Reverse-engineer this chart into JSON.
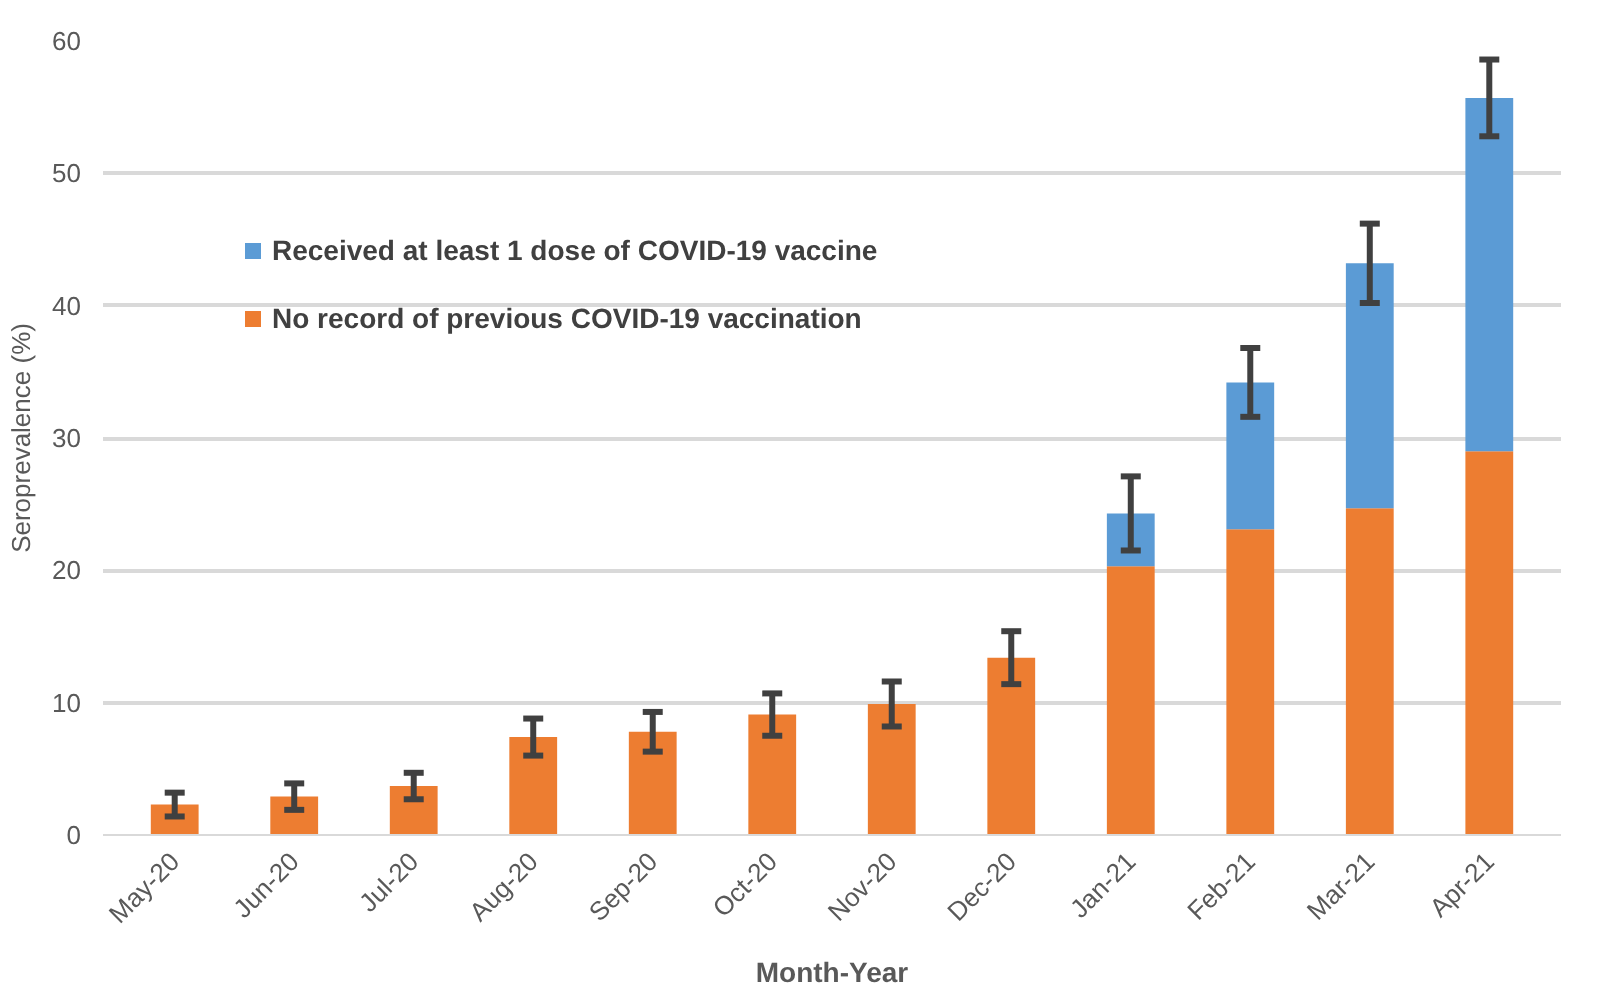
{
  "chart_data": {
    "type": "bar",
    "stacked": true,
    "xlabel": "Month-Year",
    "ylabel": "Seroprevalence (%)",
    "categories": [
      "May-20",
      "Jun-20",
      "Jul-20",
      "Aug-20",
      "Sep-20",
      "Oct-20",
      "Nov-20",
      "Dec-20",
      "Jan-21",
      "Feb-21",
      "Mar-21",
      "Apr-21"
    ],
    "series": [
      {
        "name": "No record of previous COVID-19 vaccination",
        "color": "#ed7d31",
        "values": [
          2.3,
          2.9,
          3.7,
          7.4,
          7.8,
          9.1,
          9.9,
          13.4,
          20.3,
          23.1,
          24.7,
          29.0
        ],
        "errors": [
          0.9,
          1.0,
          1.0,
          1.4,
          1.5,
          1.6,
          1.7,
          2.0,
          null,
          null,
          null,
          null
        ]
      },
      {
        "name": "Received at least 1 dose of COVID-19 vaccine",
        "color": "#5b9bd5",
        "values": [
          null,
          null,
          null,
          null,
          null,
          null,
          null,
          null,
          4.0,
          11.1,
          18.5,
          26.7
        ],
        "errors": [
          null,
          null,
          null,
          null,
          null,
          null,
          null,
          null,
          2.8,
          2.6,
          3.0,
          2.9
        ]
      }
    ],
    "ylim": [
      0,
      60
    ],
    "yticks": [
      0,
      10,
      20,
      30,
      40,
      50,
      60
    ],
    "grid": "y",
    "legend": "top left"
  }
}
